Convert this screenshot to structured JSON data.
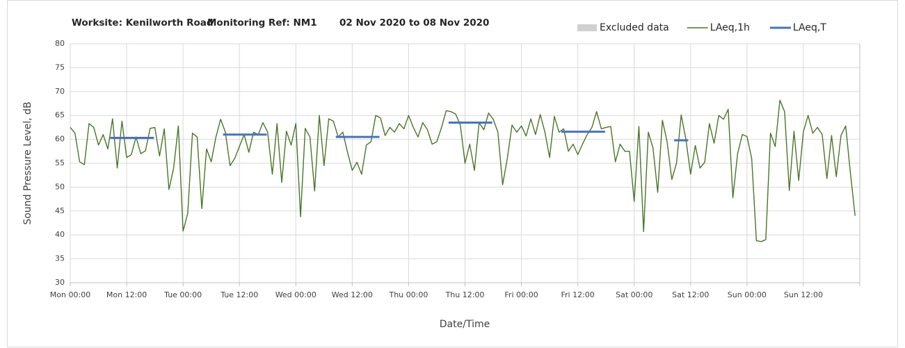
{
  "chart_data": {
    "type": "line",
    "title_parts": [
      "Worksite: Kenilworth Road",
      "Monitoring Ref: NM1",
      "02 Nov 2020 to 08 Nov 2020"
    ],
    "y_label": "Sound Pressure Level, dB",
    "x_label": "Date/Time",
    "legend": [
      {
        "name": "Excluded data",
        "color": "#d0d0d0"
      }
    ],
    "xlim": [
      0,
      168
    ],
    "xticks": [
      {
        "value": 0,
        "label": "Mon 00:00"
      },
      {
        "value": 12,
        "label": "Mon 12:00"
      },
      {
        "value": 24,
        "label": "Tue 00:00"
      },
      {
        "value": 36,
        "label": "Tue 12:00"
      },
      {
        "value": 48,
        "label": "Wed 00:00"
      },
      {
        "value": 60,
        "label": "Wed 12:00"
      },
      {
        "value": 72,
        "label": "Thu 00:00"
      },
      {
        "value": 84,
        "label": "Thu 12:00"
      },
      {
        "value": 96,
        "label": "Fri 00:00"
      },
      {
        "value": 108,
        "label": "Fri 12:00"
      },
      {
        "value": 120,
        "label": "Sat 00:00"
      },
      {
        "value": 132,
        "label": "Sat 12:00"
      },
      {
        "value": 144,
        "label": "Sun 00:00"
      },
      {
        "value": 156,
        "label": "Sun 12:00"
      }
    ],
    "ylim": [
      30,
      80
    ],
    "yticks": [
      30,
      35,
      40,
      45,
      50,
      55,
      60,
      65,
      70,
      75,
      80
    ],
    "grid": true,
    "x": [
      0,
      1,
      2,
      3,
      4,
      5,
      6,
      7,
      8,
      9,
      10,
      11,
      12,
      13,
      14,
      15,
      16,
      17,
      18,
      19,
      20,
      21,
      22,
      23,
      24,
      25,
      26,
      27,
      28,
      29,
      30,
      31,
      32,
      33,
      34,
      35,
      36,
      37,
      38,
      39,
      40,
      41,
      42,
      43,
      44,
      45,
      46,
      47,
      48,
      49,
      50,
      51,
      52,
      53,
      54,
      55,
      56,
      57,
      58,
      59,
      60,
      61,
      62,
      63,
      64,
      65,
      66,
      67,
      68,
      69,
      70,
      71,
      72,
      73,
      74,
      75,
      76,
      77,
      78,
      79,
      80,
      81,
      82,
      83,
      84,
      85,
      86,
      87,
      88,
      89,
      90,
      91,
      92,
      93,
      94,
      95,
      96,
      97,
      98,
      99,
      100,
      101,
      102,
      103,
      104,
      105,
      106,
      107,
      108,
      109,
      110,
      111,
      112,
      113,
      114,
      115,
      116,
      117,
      118,
      119,
      120,
      121,
      122,
      123,
      124,
      125,
      126,
      127,
      128,
      129,
      130,
      131,
      132,
      133,
      134,
      135,
      136,
      137,
      138,
      139,
      140,
      141,
      142,
      143,
      144,
      145,
      146,
      147,
      148,
      149,
      150,
      151,
      152,
      153,
      154,
      155,
      156,
      157,
      158,
      159,
      160,
      161,
      162,
      163,
      164,
      165,
      166,
      167
    ],
    "series": [
      {
        "name": "LAeq,1h",
        "color": "#4a7526",
        "values": [
          62.5,
          61.3,
          55.3,
          54.7,
          63.3,
          62.5,
          58.8,
          61,
          58,
          64.3,
          54,
          63.8,
          56.2,
          56.8,
          60.5,
          57,
          57.6,
          62.3,
          62.5,
          56.5,
          62.2,
          49.5,
          54,
          62.8,
          40.8,
          44.5,
          61.3,
          60.5,
          45.5,
          58,
          55.3,
          60.5,
          64.2,
          61.5,
          54.5,
          56,
          58.5,
          61,
          57.3,
          61.5,
          61,
          63.5,
          61.5,
          52.7,
          63.3,
          51,
          61.7,
          58.8,
          63.3,
          43.8,
          62.3,
          60.5,
          49.2,
          65,
          54.5,
          64.3,
          63.8,
          60.5,
          61.5,
          57.3,
          53.5,
          55.2,
          52.7,
          58.8,
          59.5,
          65,
          64.5,
          60.8,
          62.5,
          61.5,
          63.3,
          62.2,
          65,
          62.5,
          60.5,
          63.5,
          62,
          59,
          59.5,
          62.5,
          66,
          65.8,
          65.3,
          63,
          55,
          59,
          53.5,
          63.5,
          62,
          65.5,
          64.2,
          61.5,
          50.5,
          56,
          63,
          61.5,
          62.8,
          60.7,
          64.3,
          61,
          65.2,
          61.5,
          56.2,
          64.8,
          61.5,
          62.2,
          57.5,
          59,
          56.8,
          59,
          61,
          62.5,
          65.8,
          62.2,
          62.5,
          62.7,
          55.3,
          59,
          57.5,
          57.5,
          47,
          62.7,
          40.7,
          61.5,
          58.2,
          48.9,
          64,
          59.5,
          51.6,
          55,
          65.1,
          60,
          52.7,
          58.7,
          54,
          55.2,
          63.3,
          59.2,
          65,
          64.2,
          66.3,
          47.8,
          57,
          61,
          60.6,
          56,
          38.8,
          38.6,
          39,
          61.3,
          58.5,
          68.2,
          65.8,
          49.3,
          61.7,
          51.4,
          61.6,
          65,
          61.3,
          62.5,
          61,
          51.8,
          60.8,
          52.2,
          60.8,
          62.8,
          53,
          44
        ]
      },
      {
        "name": "LAeq,T",
        "color": "#4472c4",
        "segments": [
          {
            "x": [
              8.5,
              17.8
            ],
            "value": 60.3
          },
          {
            "x": [
              32.5,
              41.8
            ],
            "value": 61
          },
          {
            "x": [
              56.5,
              65.8
            ],
            "value": 60.5
          },
          {
            "x": [
              80.5,
              89.8
            ],
            "value": 63.5
          },
          {
            "x": [
              104.5,
              113.8
            ],
            "value": 61.6
          },
          {
            "x": [
              128.5,
              131.5
            ],
            "value": 59.8
          }
        ]
      }
    ]
  }
}
